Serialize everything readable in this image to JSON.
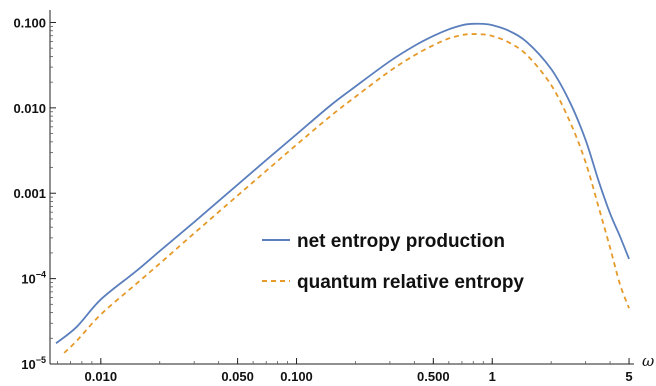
{
  "chart_data": {
    "type": "line",
    "title": "",
    "xlabel": "ω",
    "ylabel": "",
    "x_scale": "log",
    "y_scale": "log",
    "xlim": [
      0.0055,
      5.3
    ],
    "ylim": [
      1e-05,
      0.14
    ],
    "x_ticks": [
      {
        "value": 0.01,
        "label": "0.010"
      },
      {
        "value": 0.05,
        "label": "0.050"
      },
      {
        "value": 0.1,
        "label": "0.100"
      },
      {
        "value": 0.5,
        "label": "0.500"
      },
      {
        "value": 1,
        "label": "1"
      },
      {
        "value": 5,
        "label": "5"
      }
    ],
    "y_ticks": [
      {
        "value": 1e-05,
        "base": "10",
        "exp": "−5"
      },
      {
        "value": 0.0001,
        "base": "10",
        "exp": "−4"
      },
      {
        "value": 0.001,
        "label": "0.001"
      },
      {
        "value": 0.01,
        "label": "0.010"
      },
      {
        "value": 0.1,
        "label": "0.100"
      }
    ],
    "grid": false,
    "legend_position": "center-right",
    "series": [
      {
        "name": "net entropy production",
        "color": "#5b7fbd",
        "dash": "solid",
        "x": [
          0.0059,
          0.0075,
          0.01,
          0.015,
          0.02,
          0.03,
          0.05,
          0.07,
          0.1,
          0.15,
          0.2,
          0.3,
          0.4,
          0.5,
          0.6,
          0.7,
          0.75,
          0.8,
          0.9,
          1.0,
          1.2,
          1.5,
          2.0,
          2.5,
          3.0,
          3.5,
          4.0,
          4.5,
          5.0
        ],
        "y": [
          1.75e-05,
          2.7e-05,
          5.7e-05,
          0.00012,
          0.00021,
          0.00046,
          0.00126,
          0.00245,
          0.0049,
          0.0108,
          0.0178,
          0.0352,
          0.0532,
          0.0695,
          0.0832,
          0.0928,
          0.0955,
          0.0965,
          0.0962,
          0.093,
          0.0811,
          0.0592,
          0.0285,
          0.0115,
          0.0042,
          0.00138,
          0.00058,
          0.00031,
          0.00017
        ]
      },
      {
        "name": "quantum relative entropy",
        "color": "#e59a2a",
        "dash": "dashed",
        "x": [
          0.0065,
          0.0075,
          0.01,
          0.015,
          0.02,
          0.03,
          0.05,
          0.07,
          0.1,
          0.15,
          0.2,
          0.3,
          0.4,
          0.5,
          0.6,
          0.7,
          0.75,
          0.8,
          0.9,
          1.0,
          1.2,
          1.5,
          2.0,
          2.5,
          3.0,
          3.5,
          4.0,
          4.5,
          5.0
        ],
        "y": [
          1.35e-05,
          1.85e-05,
          3.8e-05,
          8.5e-05,
          0.00015,
          0.00034,
          0.00094,
          0.00183,
          0.0037,
          0.0081,
          0.0135,
          0.027,
          0.0412,
          0.0541,
          0.065,
          0.0712,
          0.0728,
          0.0732,
          0.0725,
          0.0695,
          0.0593,
          0.0418,
          0.0185,
          0.0068,
          0.0023,
          0.00068,
          0.00023,
          8.5e-05,
          4.5e-05
        ]
      }
    ]
  }
}
